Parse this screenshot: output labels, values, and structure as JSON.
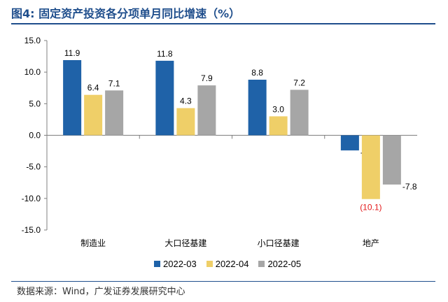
{
  "figure_title": "图4:  固定资产投资各分项单月同比增速（%）",
  "source_note": "数据来源：Wind，广发证券发展研究中心",
  "colors": {
    "title": "#1f4e8c",
    "series": [
      "#1f62a8",
      "#efcf68",
      "#a6a6a6"
    ],
    "negative_label": "#e31a1c"
  },
  "chart_data": {
    "type": "bar",
    "title": "",
    "xlabel": "",
    "ylabel": "",
    "categories": [
      "制造业",
      "大口径基建",
      "小口径基建",
      "地产"
    ],
    "series": [
      {
        "name": "2022-03",
        "values": [
          11.9,
          11.8,
          8.8,
          -2.4
        ],
        "labels": [
          "11.9",
          "11.8",
          "8.8",
          "-2.4"
        ]
      },
      {
        "name": "2022-04",
        "values": [
          6.4,
          4.3,
          3.0,
          -10.1
        ],
        "labels": [
          "6.4",
          "4.3",
          "3.0",
          "(10.1)"
        ]
      },
      {
        "name": "2022-05",
        "values": [
          7.1,
          7.9,
          7.2,
          -7.8
        ],
        "labels": [
          "7.1",
          "7.9",
          "7.2",
          "-7.8"
        ]
      }
    ],
    "ylim": [
      -15,
      15
    ],
    "yticks": [
      15,
      10,
      5,
      0,
      -5,
      -10,
      -15
    ],
    "ytick_labels": [
      "15.0",
      "10.0",
      "5.0",
      "0.0",
      "-5.0",
      "-10.0",
      "-15.0"
    ],
    "grid": false,
    "legend_position": "bottom"
  }
}
